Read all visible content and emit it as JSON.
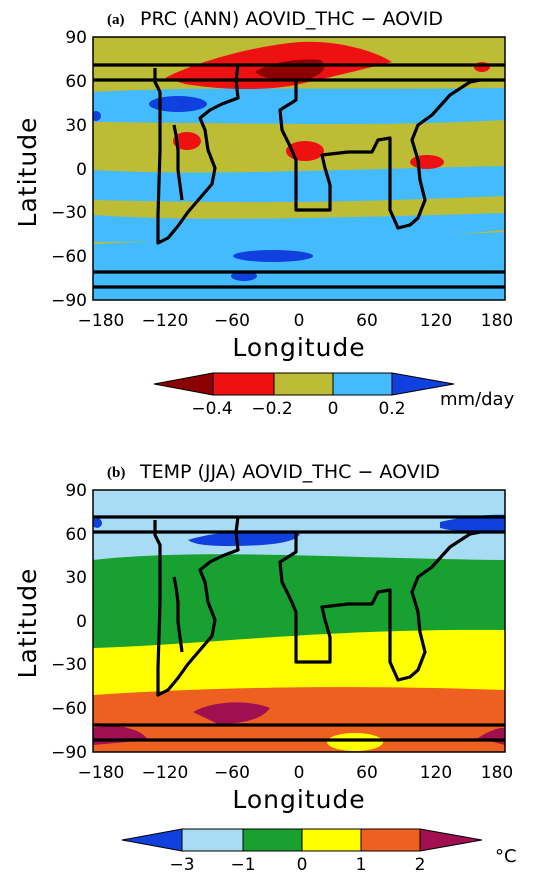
{
  "figure": {
    "panels": [
      {
        "label": "(a)",
        "title": "PRC (ANN) AOVID_THC − AOVID",
        "xlabel": "Longitude",
        "ylabel": "Latitude",
        "xticks": [
          "−180",
          "−120",
          "−60",
          "0",
          "60",
          "120",
          "180"
        ],
        "yticks": [
          "90",
          "60",
          "30",
          "0",
          "−30",
          "−60",
          "−90"
        ],
        "colorbar": {
          "tick_labels": [
            "−0.4",
            "−0.2",
            "0",
            "0.2"
          ],
          "units": "mm/day",
          "colors": [
            "#8b0000",
            "#ee1111",
            "#bdbd35",
            "#44bbff",
            "#1040dd"
          ]
        }
      },
      {
        "label": "(b)",
        "title": "TEMP (JJA) AOVID_THC − AOVID",
        "xlabel": "Longitude",
        "ylabel": "Latitude",
        "xticks": [
          "−180",
          "−120",
          "−60",
          "0",
          "60",
          "120",
          "180"
        ],
        "yticks": [
          "90",
          "60",
          "30",
          "0",
          "−30",
          "−60",
          "−90"
        ],
        "colorbar": {
          "tick_labels": [
            "−3",
            "−1",
            "0",
            "1",
            "2"
          ],
          "units": "°C",
          "colors": [
            "#1040dd",
            "#a8dcf5",
            "#18a030",
            "#ffff00",
            "#ee6020",
            "#a01050"
          ]
        }
      }
    ]
  },
  "chart_data": [
    {
      "type": "heatmap",
      "title": "PRC (ANN) AOVID_THC − AOVID",
      "xlabel": "Longitude",
      "ylabel": "Latitude",
      "xlim": [
        -180,
        180
      ],
      "ylim": [
        -90,
        90
      ],
      "x_ticks": [
        -180,
        -120,
        -60,
        0,
        60,
        120,
        180
      ],
      "y_ticks": [
        90,
        60,
        30,
        0,
        -30,
        -60,
        -90
      ],
      "units": "mm/day",
      "contour_levels": [
        -0.4,
        -0.2,
        0,
        0.2
      ],
      "colors": [
        "#8b0000",
        "#ee1111",
        "#bdbd35",
        "#44bbff",
        "#1040dd"
      ]
    },
    {
      "type": "heatmap",
      "title": "TEMP (JJA) AOVID_THC − AOVID",
      "xlabel": "Longitude",
      "ylabel": "Latitude",
      "xlim": [
        -180,
        180
      ],
      "ylim": [
        -90,
        90
      ],
      "x_ticks": [
        -180,
        -120,
        -60,
        0,
        60,
        120,
        180
      ],
      "y_ticks": [
        90,
        60,
        30,
        0,
        -30,
        -60,
        -90
      ],
      "units": "°C",
      "contour_levels": [
        -3,
        -1,
        0,
        1,
        2
      ],
      "colors": [
        "#1040dd",
        "#a8dcf5",
        "#18a030",
        "#ffff00",
        "#ee6020",
        "#a01050"
      ]
    }
  ]
}
